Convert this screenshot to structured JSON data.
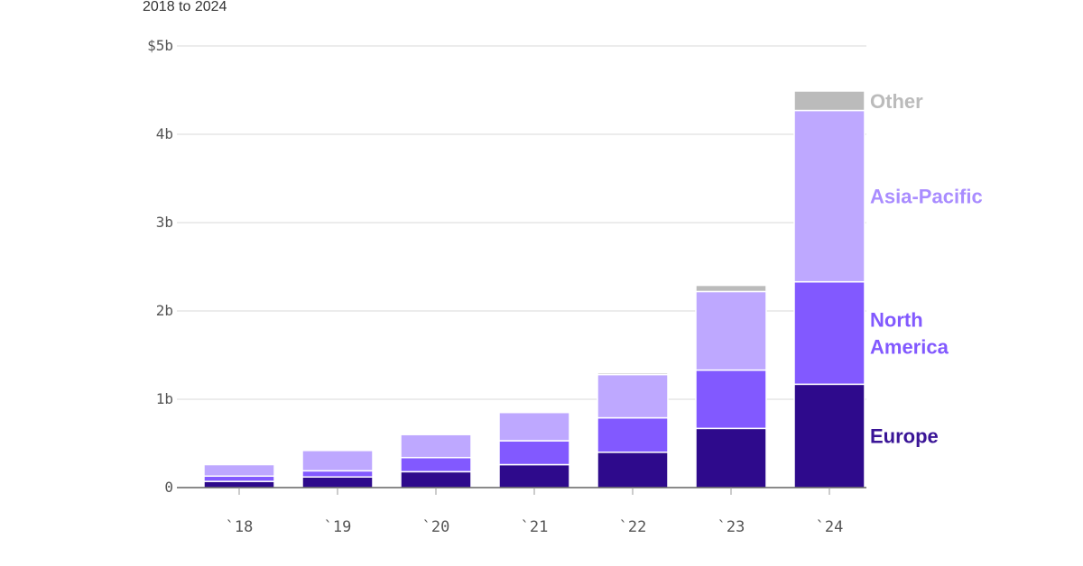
{
  "chart_data": {
    "type": "bar",
    "stacked": true,
    "subtitle": "2018 to 2024",
    "categories": [
      "`18",
      "`19",
      "`20",
      "`21",
      "`22",
      "`23",
      "`24"
    ],
    "y_tick_values": [
      0,
      1,
      2,
      3,
      4,
      5
    ],
    "y_tick_labels": [
      "0",
      "1b",
      "2b",
      "3b",
      "4b",
      "$5b"
    ],
    "ylim": [
      0,
      5
    ],
    "grid": true,
    "series": [
      {
        "name": "Europe",
        "color": "#2e0a8c",
        "values": [
          0.07,
          0.12,
          0.18,
          0.26,
          0.4,
          0.67,
          1.17
        ]
      },
      {
        "name": "North America",
        "color": "#8259ff",
        "values": [
          0.06,
          0.07,
          0.16,
          0.27,
          0.39,
          0.66,
          1.16
        ]
      },
      {
        "name": "Asia-Pacific",
        "color": "#bea8ff",
        "values": [
          0.13,
          0.23,
          0.26,
          0.32,
          0.49,
          0.89,
          1.94
        ]
      },
      {
        "name": "Other",
        "color": "#bbbbbb",
        "values": [
          0,
          0,
          0,
          0,
          0.02,
          0.07,
          0.22
        ]
      }
    ],
    "label_colors": {
      "Europe": "#3a1597",
      "North America": "#8259ff",
      "Asia-Pacific": "#a98cff",
      "Other": "#bbbbbb"
    }
  }
}
